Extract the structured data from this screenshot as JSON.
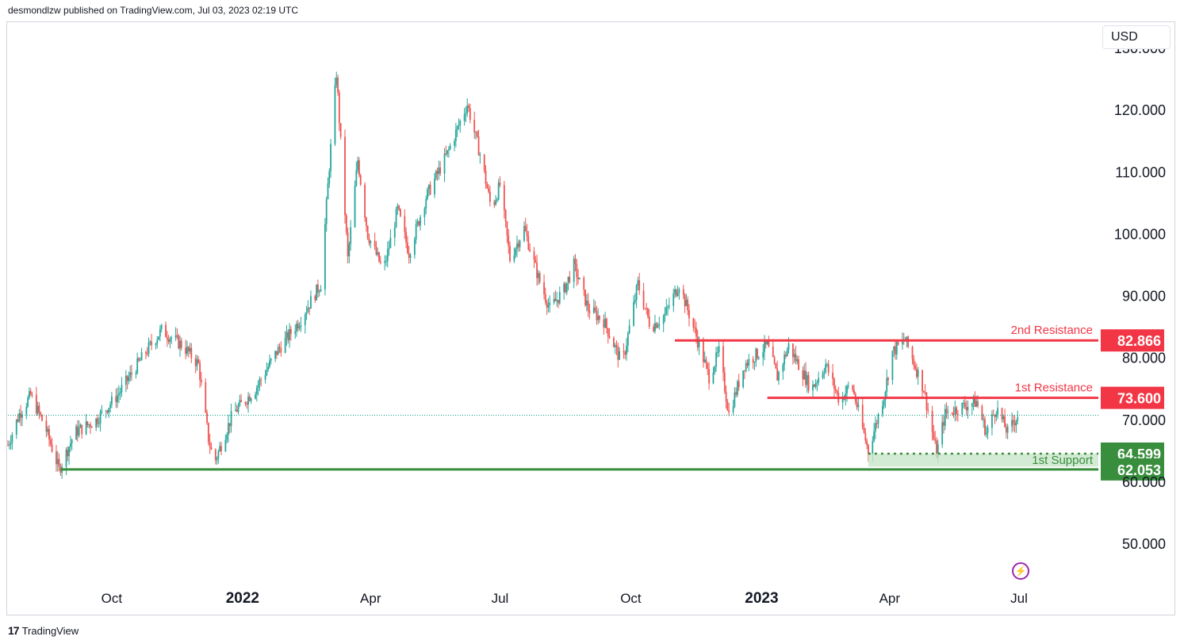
{
  "header": {
    "text": "desmondlzw published on TradingView.com, Jul 03, 2023 02:19 UTC"
  },
  "currency_button": {
    "label": "USD"
  },
  "footer": {
    "logo_glyph": "17",
    "brand": "TradingView"
  },
  "icons": {
    "lightning": "lightning-icon",
    "logo": "tradingview-logo-icon"
  },
  "colors": {
    "up": "#26a69a",
    "down": "#ef5350",
    "resistance": "#f23645",
    "support": "#388e3c",
    "support_zone": "#c8e6c9",
    "last_price_line": "#089981"
  },
  "chart_data": {
    "type": "candlestick",
    "title": "",
    "currency": "USD",
    "ylim": [
      45,
      130
    ],
    "y_ticks": [
      {
        "value": 50,
        "label": "50.000"
      },
      {
        "value": 60,
        "label": "60.000"
      },
      {
        "value": 70,
        "label": "70.000"
      },
      {
        "value": 80,
        "label": "80.000"
      },
      {
        "value": 90,
        "label": "90.000"
      },
      {
        "value": 100,
        "label": "100.000"
      },
      {
        "value": 110,
        "label": "110.000"
      },
      {
        "value": 120,
        "label": "120.000"
      },
      {
        "value": 130,
        "label": "130.000"
      }
    ],
    "x_ticks": [
      {
        "date": "2021-10-01",
        "label": "Oct",
        "bold": false
      },
      {
        "date": "2022-01-01",
        "label": "2022",
        "bold": true
      },
      {
        "date": "2022-04-01",
        "label": "Apr",
        "bold": false
      },
      {
        "date": "2022-07-01",
        "label": "Jul",
        "bold": false
      },
      {
        "date": "2022-10-01",
        "label": "Oct",
        "bold": false
      },
      {
        "date": "2023-01-01",
        "label": "2023",
        "bold": true
      },
      {
        "date": "2023-04-01",
        "label": "Apr",
        "bold": false
      },
      {
        "date": "2023-07-01",
        "label": "Jul",
        "bold": false
      }
    ],
    "x_range": [
      "2021-07-20",
      "2023-08-25"
    ],
    "price_path": [
      [
        "2021-07-20",
        66
      ],
      [
        "2021-07-28",
        71
      ],
      [
        "2021-08-05",
        74
      ],
      [
        "2021-08-15",
        69
      ],
      [
        "2021-08-25",
        62
      ],
      [
        "2021-09-05",
        68
      ],
      [
        "2021-09-20",
        70
      ],
      [
        "2021-10-05",
        74
      ],
      [
        "2021-10-25",
        81
      ],
      [
        "2021-11-05",
        84.5
      ],
      [
        "2021-11-20",
        82
      ],
      [
        "2021-12-01",
        79
      ],
      [
        "2021-12-08",
        67
      ],
      [
        "2021-12-12",
        63
      ],
      [
        "2021-12-25",
        71
      ],
      [
        "2022-01-10",
        75
      ],
      [
        "2022-01-25",
        81
      ],
      [
        "2022-02-10",
        86
      ],
      [
        "2022-02-25",
        92
      ],
      [
        "2022-03-03",
        111
      ],
      [
        "2022-03-08",
        126
      ],
      [
        "2022-03-16",
        96
      ],
      [
        "2022-03-23",
        112
      ],
      [
        "2022-03-30",
        100
      ],
      [
        "2022-04-10",
        94
      ],
      [
        "2022-04-20",
        104
      ],
      [
        "2022-04-28",
        97
      ],
      [
        "2022-05-10",
        106
      ],
      [
        "2022-05-25",
        113
      ],
      [
        "2022-06-08",
        121
      ],
      [
        "2022-06-18",
        112
      ],
      [
        "2022-06-25",
        104
      ],
      [
        "2022-07-01",
        108
      ],
      [
        "2022-07-08",
        96
      ],
      [
        "2022-07-18",
        101
      ],
      [
        "2022-07-28",
        93
      ],
      [
        "2022-08-05",
        88
      ],
      [
        "2022-08-15",
        91
      ],
      [
        "2022-08-22",
        95
      ],
      [
        "2022-09-01",
        88
      ],
      [
        "2022-09-12",
        86
      ],
      [
        "2022-09-25",
        79
      ],
      [
        "2022-10-06",
        92
      ],
      [
        "2022-10-15",
        85
      ],
      [
        "2022-10-25",
        87
      ],
      [
        "2022-11-04",
        92
      ],
      [
        "2022-11-14",
        85
      ],
      [
        "2022-11-25",
        77
      ],
      [
        "2022-12-02",
        81
      ],
      [
        "2022-12-09",
        71
      ],
      [
        "2022-12-20",
        79
      ],
      [
        "2023-01-05",
        82
      ],
      [
        "2023-01-12",
        77
      ],
      [
        "2023-01-20",
        82
      ],
      [
        "2023-02-05",
        75
      ],
      [
        "2023-02-15",
        79
      ],
      [
        "2023-02-25",
        73
      ],
      [
        "2023-03-05",
        76
      ],
      [
        "2023-03-17",
        65
      ],
      [
        "2023-03-28",
        74
      ],
      [
        "2023-04-03",
        81
      ],
      [
        "2023-04-12",
        83
      ],
      [
        "2023-04-25",
        75
      ],
      [
        "2023-05-04",
        64.6
      ],
      [
        "2023-05-10",
        71
      ],
      [
        "2023-05-20",
        72
      ],
      [
        "2023-06-01",
        73
      ],
      [
        "2023-06-08",
        68
      ],
      [
        "2023-06-15",
        72
      ],
      [
        "2023-06-23",
        68
      ],
      [
        "2023-06-30",
        70.8
      ]
    ],
    "last_price": 70.8,
    "levels": [
      {
        "name": "2nd Resistance",
        "value": 82.866,
        "label": "82.866",
        "kind": "resistance",
        "start": "2022-11-01",
        "line": "solid"
      },
      {
        "name": "1st Resistance",
        "value": 73.6,
        "label": "73.600",
        "kind": "resistance",
        "start": "2023-01-05",
        "line": "solid"
      },
      {
        "name": "1st Support",
        "value": 64.599,
        "label": "64.599",
        "kind": "support",
        "start": "2023-03-17",
        "line": "dotted",
        "zone_to": 62.5
      },
      {
        "name": "",
        "value": 62.053,
        "label": "62.053",
        "kind": "support",
        "start": "2021-08-26",
        "line": "solid"
      }
    ]
  }
}
